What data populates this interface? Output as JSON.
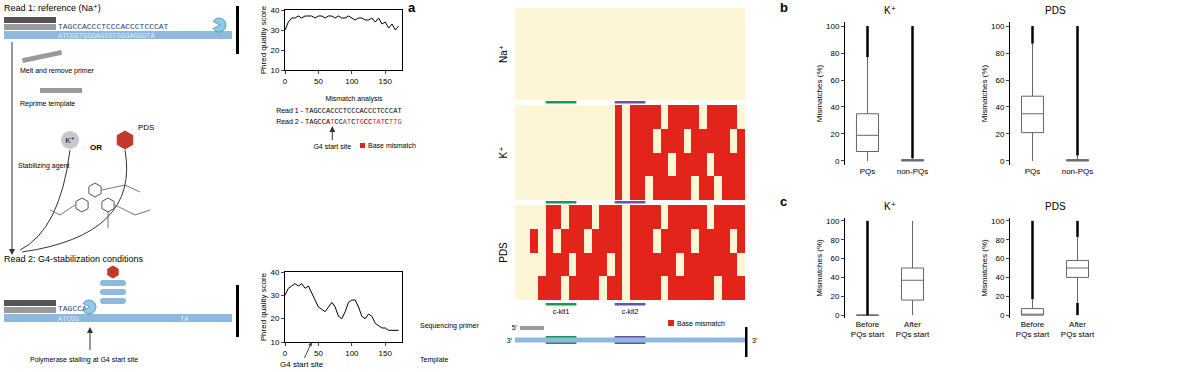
{
  "diagram": {
    "panel_labels": [
      "a",
      "b",
      "c"
    ],
    "read1": {
      "label": "Read 1: reference (Na⁺)",
      "sequence": "TAGCCACCCTCCCACCCTCCCAT",
      "template": "ATCGGTGGGAGGGTGGGAGGGTA"
    },
    "steps": [
      "Melt and remove primer",
      "Reprime template"
    ],
    "agents": {
      "k": "K⁺",
      "or": "OR",
      "pds": "PDS",
      "caption": "Stabilizing agent"
    },
    "read2": {
      "label": "Read 2: G4-stabilization conditions",
      "sequence": "TAGCCA",
      "template": "ATCGG",
      "template_end": "TA",
      "caption": "Polymerase stalling at G4 start site"
    },
    "mismatch": {
      "title": "Mismatch analysis",
      "read1": "Read 1 -",
      "read2": "Read 2 -",
      "sequence1": "TAGCCACCCTCCCACCCTCCCAT",
      "sequence2": "TAGCCATCCATCTGCCTATCTTG",
      "start": "G4 start site",
      "legend": "Base mismatch"
    },
    "template_schematic": {
      "primer": "Sequencing primer",
      "template": "Template",
      "ends": [
        "5′",
        "3′",
        "3′"
      ]
    }
  },
  "chart_data": [
    {
      "type": "line",
      "ylabel": "Phred quality score",
      "color": "#000000",
      "grid": false,
      "x": [
        0,
        5,
        10,
        15,
        20,
        25,
        30,
        35,
        40,
        45,
        50,
        55,
        60,
        65,
        70,
        75,
        80,
        85,
        90,
        95,
        100,
        105,
        110,
        115,
        120,
        125,
        130,
        135,
        140,
        145,
        150,
        155,
        160,
        165,
        170
      ],
      "values": [
        30,
        34,
        36,
        36,
        37,
        36,
        37,
        37,
        37,
        36,
        37,
        37,
        36,
        37,
        37,
        36,
        37,
        36,
        36,
        37,
        36,
        35,
        36,
        36,
        35,
        35,
        36,
        34,
        36,
        33,
        34,
        31,
        33,
        30,
        32
      ],
      "xlim": [
        0,
        175
      ],
      "xticks": [
        0,
        50,
        100,
        150
      ],
      "ylim": [
        10,
        40
      ],
      "yticks": [
        10,
        20,
        30,
        40
      ]
    },
    {
      "type": "line",
      "ylabel": "Phred quality score",
      "color": "#000000",
      "grid": false,
      "x": [
        0,
        5,
        10,
        15,
        20,
        25,
        30,
        35,
        40,
        45,
        50,
        55,
        60,
        65,
        70,
        75,
        80,
        85,
        90,
        95,
        100,
        105,
        110,
        115,
        120,
        125,
        130,
        135,
        140,
        145,
        150,
        155,
        160,
        165,
        170
      ],
      "values": [
        30,
        33,
        34,
        35,
        34,
        35,
        33,
        34,
        31,
        28,
        25,
        24,
        23,
        25,
        27,
        25,
        21,
        20,
        23,
        27,
        28,
        28,
        25,
        21,
        20,
        22,
        21,
        18,
        17,
        16,
        16,
        15,
        15,
        15,
        15
      ],
      "xlim": [
        0,
        175
      ],
      "xticks": [
        0,
        50,
        100,
        150
      ],
      "ylim": [
        10,
        40
      ],
      "yticks": [
        10,
        20,
        30,
        40
      ],
      "annotations": [
        {
          "text": "G4 start site",
          "x": 40
        }
      ]
    },
    {
      "type": "heatmap",
      "tick_labels": false,
      "cell_range": [
        0,
        1
      ],
      "legend_label": "Base mismatch",
      "regions": [
        {
          "label": "c-kit1",
          "start": 4,
          "end": 7
        },
        {
          "label": "c-kit2",
          "start": 13,
          "end": 16
        }
      ],
      "rows": [
        {
          "name": "Na⁺",
          "cells": [
            [
              0,
              0,
              0,
              0,
              0,
              0,
              0,
              0,
              0,
              0,
              0,
              0,
              0,
              0,
              0,
              0,
              0,
              0,
              0,
              0,
              0,
              0,
              0,
              0,
              0,
              0,
              0,
              0,
              0,
              0
            ],
            [
              0,
              0,
              0,
              0,
              0,
              0,
              0,
              0,
              0,
              0,
              0,
              0,
              0,
              0,
              0,
              0,
              0,
              0,
              0,
              0,
              0,
              0,
              0,
              0,
              0,
              0,
              0,
              0,
              0,
              0
            ],
            [
              0,
              0,
              0,
              0,
              0,
              0,
              0,
              0,
              0,
              0,
              0,
              0,
              0,
              0,
              0,
              0,
              0,
              0,
              0,
              0,
              0,
              0,
              0,
              0,
              0,
              0,
              0,
              0,
              0,
              0
            ],
            [
              0,
              0,
              0,
              0,
              0,
              0,
              0,
              0,
              0,
              0,
              0,
              0,
              0,
              0,
              0,
              0,
              0,
              0,
              0,
              0,
              0,
              0,
              0,
              0,
              0,
              0,
              0,
              0,
              0,
              0
            ]
          ]
        },
        {
          "name": "K⁺",
          "cells": [
            [
              0,
              0,
              0,
              0,
              0,
              0,
              0,
              0,
              0,
              0,
              0,
              0,
              0,
              1,
              0,
              1,
              1,
              1,
              1,
              0,
              1,
              1,
              1,
              1,
              0,
              1,
              1,
              1,
              1,
              0
            ],
            [
              0,
              0,
              0,
              0,
              0,
              0,
              0,
              0,
              0,
              0,
              0,
              0,
              0,
              1,
              0,
              1,
              1,
              1,
              0,
              1,
              1,
              1,
              0,
              1,
              1,
              1,
              1,
              1,
              0,
              1
            ],
            [
              0,
              0,
              0,
              0,
              0,
              0,
              0,
              0,
              0,
              0,
              0,
              0,
              0,
              1,
              0,
              1,
              1,
              1,
              1,
              1,
              0,
              1,
              1,
              1,
              1,
              0,
              1,
              1,
              1,
              1
            ],
            [
              0,
              0,
              0,
              0,
              0,
              0,
              0,
              0,
              0,
              0,
              0,
              0,
              0,
              1,
              0,
              1,
              1,
              0,
              1,
              1,
              1,
              1,
              1,
              0,
              1,
              1,
              0,
              1,
              1,
              1
            ]
          ]
        },
        {
          "name": "PDS",
          "cells": [
            [
              0,
              0,
              0,
              0,
              1,
              1,
              0,
              1,
              1,
              1,
              0,
              1,
              1,
              1,
              0,
              1,
              1,
              1,
              1,
              0,
              1,
              1,
              1,
              1,
              1,
              0,
              1,
              1,
              1,
              1
            ],
            [
              0,
              0,
              1,
              0,
              1,
              0,
              1,
              1,
              1,
              0,
              1,
              1,
              1,
              1,
              0,
              1,
              1,
              1,
              0,
              1,
              1,
              1,
              1,
              0,
              1,
              1,
              1,
              1,
              0,
              1
            ],
            [
              0,
              0,
              0,
              0,
              1,
              1,
              1,
              0,
              1,
              1,
              1,
              1,
              0,
              1,
              0,
              1,
              1,
              1,
              1,
              1,
              1,
              0,
              1,
              1,
              1,
              1,
              1,
              1,
              1,
              0
            ],
            [
              0,
              0,
              0,
              1,
              1,
              1,
              0,
              1,
              1,
              1,
              1,
              0,
              1,
              1,
              0,
              1,
              1,
              1,
              1,
              0,
              1,
              1,
              1,
              1,
              1,
              1,
              0,
              1,
              1,
              1
            ]
          ]
        }
      ]
    },
    {
      "type": "box",
      "title": "K⁺",
      "ylabel": "Mismatches (%)",
      "categories": [
        "PQs",
        "non-PQs"
      ],
      "boxes": [
        {
          "q1": 7,
          "median": 19,
          "q3": 35,
          "lower": 0,
          "upper": 77,
          "outliers": [
            [
              77,
              100
            ]
          ]
        },
        {
          "q1": 0,
          "median": 0,
          "q3": 1,
          "lower": 0,
          "upper": 2,
          "outliers": [
            [
              2,
              100
            ]
          ]
        }
      ],
      "ylim": [
        -3,
        103
      ],
      "yticks": [
        0,
        20,
        40,
        60,
        80,
        100
      ]
    },
    {
      "type": "box",
      "title": "PDS",
      "ylabel": "Mismatches (%)",
      "categories": [
        "PQs",
        "non-PQs"
      ],
      "boxes": [
        {
          "q1": 21,
          "median": 35,
          "q3": 48,
          "lower": 0,
          "upper": 87,
          "outliers": [
            [
              87,
              100
            ]
          ]
        },
        {
          "q1": 0,
          "median": 0,
          "q3": 1,
          "lower": 0,
          "upper": 4,
          "outliers": [
            [
              4,
              100
            ]
          ]
        }
      ],
      "ylim": [
        -3,
        103
      ],
      "yticks": [
        0,
        20,
        40,
        60,
        80,
        100
      ]
    },
    {
      "type": "box",
      "title": "K⁺",
      "ylabel": "Mismatches (%)",
      "categories": [
        "Before PQs start",
        "After PQs start"
      ],
      "boxes": [
        {
          "q1": 0,
          "median": 0,
          "q3": 0,
          "lower": 0,
          "upper": 0,
          "outliers": [
            [
              0,
              100
            ]
          ]
        },
        {
          "q1": 16,
          "median": 37,
          "q3": 50,
          "lower": 0,
          "upper": 100,
          "outliers": []
        }
      ],
      "ylim": [
        -3,
        103
      ],
      "yticks": [
        0,
        20,
        40,
        60,
        80,
        100
      ]
    },
    {
      "type": "box",
      "title": "PDS",
      "ylabel": "Mismatches (%)",
      "categories": [
        "Before PQs start",
        "After PQs start"
      ],
      "boxes": [
        {
          "q1": 0,
          "median": 0,
          "q3": 7,
          "lower": 0,
          "upper": 17,
          "outliers": [
            [
              17,
              100
            ]
          ]
        },
        {
          "q1": 40,
          "median": 50,
          "q3": 58,
          "lower": 13,
          "upper": 83,
          "outliers": [
            [
              0,
              13
            ],
            [
              83,
              100
            ]
          ]
        }
      ],
      "ylim": [
        -3,
        103
      ],
      "yticks": [
        0,
        20,
        40,
        60,
        80,
        100
      ]
    }
  ]
}
